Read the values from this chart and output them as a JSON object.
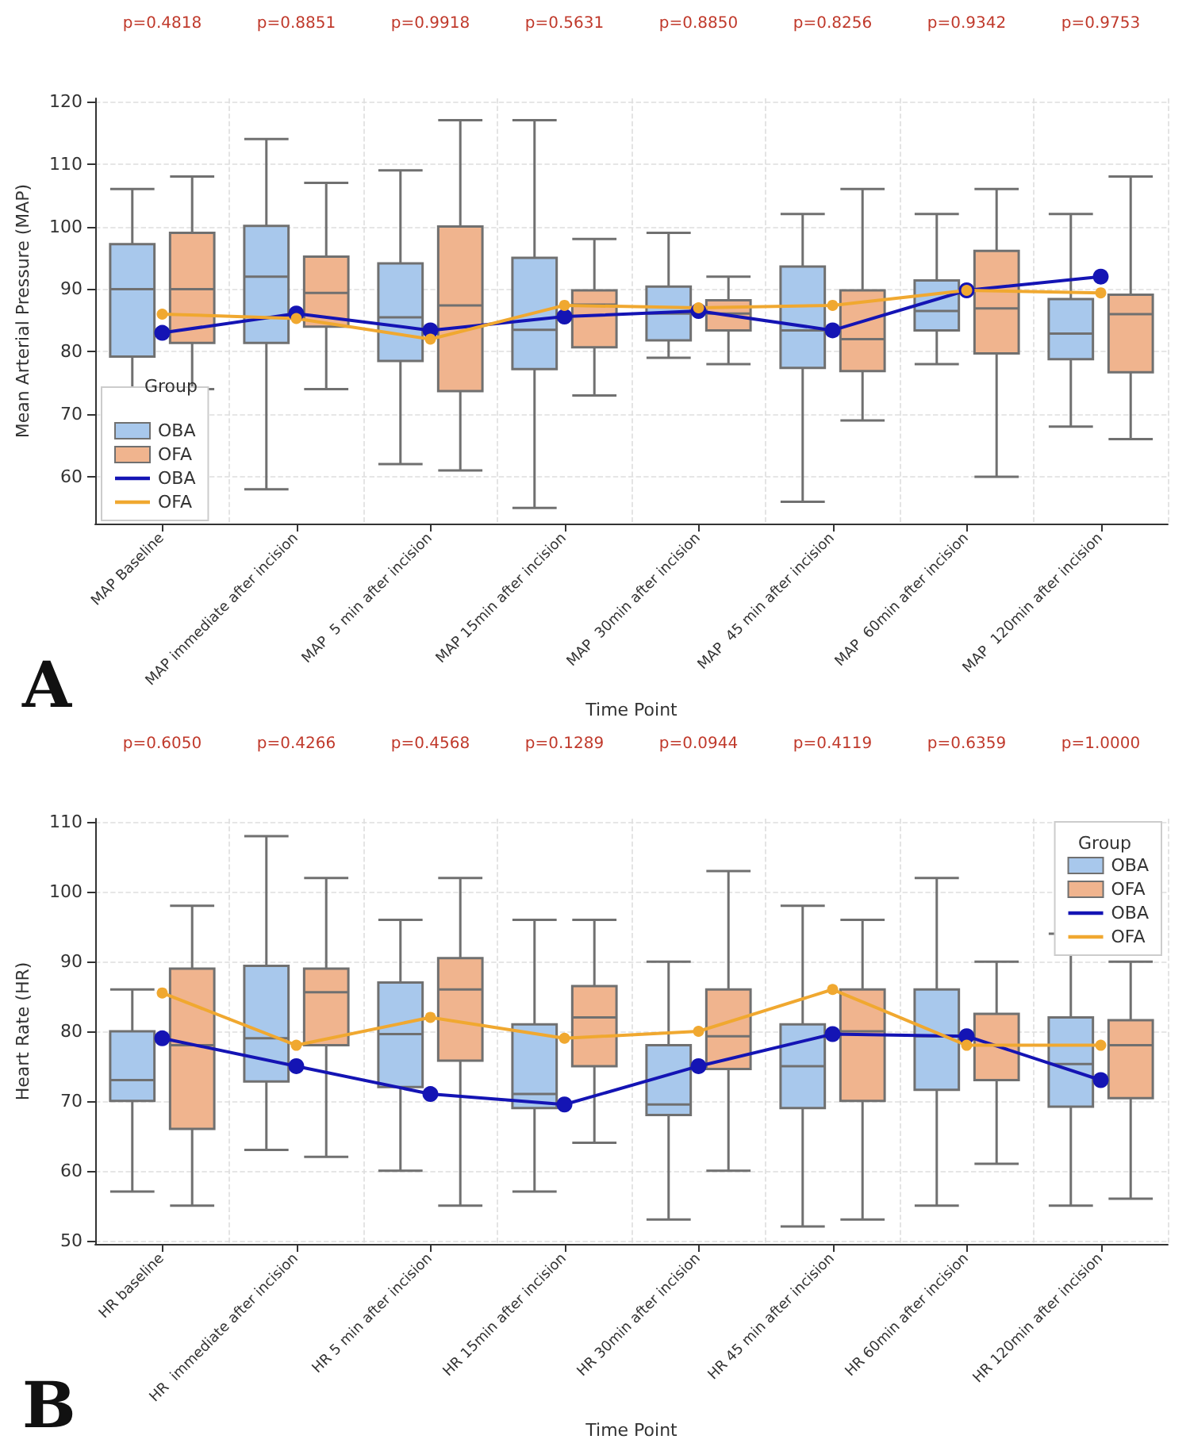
{
  "chart_data": [
    {
      "type": "box",
      "xlabel": "Time Point",
      "ylabel": "Mean Arterial Pressure (MAP)",
      "legend_title": "Group",
      "legend": "bottom left",
      "grid": true,
      "marker": "circle",
      "line_style": "solid",
      "ylim": [
        52.5,
        120.5
      ],
      "yticks": [
        60,
        70,
        80,
        90,
        100,
        110,
        120
      ],
      "categories": [
        "MAP Baseline",
        "MAP immediate after incision",
        "MAP  5 min after incision",
        "MAP 15min after incision",
        "MAP  30min after incision",
        "MAP  45 min after incision",
        "MAP  60min after incision",
        "MAP  120min after incision"
      ],
      "annotations": [
        "p=0.4818",
        "p=0.8851",
        "p=0.9918",
        "p=0.5631",
        "p=0.8850",
        "p=0.8256",
        "p=0.9342",
        "p=0.9753",
        "A"
      ],
      "series": [
        {
          "name": "OBA",
          "color": "#a8c8ec",
          "boxes": [
            {
              "low": 70,
              "q1": 79.2,
              "median": 90,
              "q3": 97.2,
              "high": 106
            },
            {
              "low": 58,
              "q1": 81.4,
              "median": 92,
              "q3": 100.1,
              "high": 114
            },
            {
              "low": 62,
              "q1": 78.5,
              "median": 85.5,
              "q3": 94.1,
              "high": 109
            },
            {
              "low": 55,
              "q1": 77.2,
              "median": 83.5,
              "q3": 95,
              "high": 117
            },
            {
              "low": 79,
              "q1": 81.8,
              "median": 86.1,
              "q3": 90.4,
              "high": 99
            },
            {
              "low": 56,
              "q1": 77.4,
              "median": 83.4,
              "q3": 93.6,
              "high": 102
            },
            {
              "low": 78,
              "q1": 83.4,
              "median": 86.5,
              "q3": 91.4,
              "high": 102
            },
            {
              "low": 68,
              "q1": 78.8,
              "median": 82.9,
              "q3": 88.4,
              "high": 102
            }
          ]
        },
        {
          "name": "OFA",
          "color": "#f0b48e",
          "boxes": [
            {
              "low": 74,
              "q1": 81.4,
              "median": 90,
              "q3": 99,
              "high": 108
            },
            {
              "low": 74,
              "q1": 84,
              "median": 89.4,
              "q3": 95.2,
              "high": 107
            },
            {
              "low": 61,
              "q1": 73.7,
              "median": 87.4,
              "q3": 100,
              "high": 117
            },
            {
              "low": 73,
              "q1": 80.7,
              "median": 87.5,
              "q3": 89.8,
              "high": 98
            },
            {
              "low": 78,
              "q1": 83.4,
              "median": 86.1,
              "q3": 88.2,
              "high": 92
            },
            {
              "low": 69,
              "q1": 76.9,
              "median": 82,
              "q3": 89.8,
              "high": 106
            },
            {
              "low": 60,
              "q1": 79.7,
              "median": 86.9,
              "q3": 96.1,
              "high": 106
            },
            {
              "low": 66,
              "q1": 76.7,
              "median": 86,
              "q3": 89.1,
              "high": 108
            }
          ]
        },
        {
          "name": "OBA",
          "type": "line",
          "color": "#1414b4",
          "values": [
            83,
            86.1,
            83.4,
            85.6,
            86.5,
            83.4,
            89.8,
            92
          ]
        },
        {
          "name": "OFA",
          "type": "line",
          "color": "#f0a830",
          "values": [
            86,
            85.3,
            82,
            87.4,
            87,
            87.4,
            89.8,
            89.4
          ]
        }
      ]
    },
    {
      "type": "box",
      "xlabel": "Time Point",
      "ylabel": "Heart Rate (HR)",
      "legend_title": "Group",
      "legend": "top right",
      "grid": true,
      "marker": "circle",
      "line_style": "solid",
      "ylim": [
        49.5,
        110.5
      ],
      "yticks": [
        50,
        60,
        70,
        80,
        90,
        100,
        110
      ],
      "categories": [
        "HR baseline",
        "HR  immediate after incision",
        "HR 5 min after incision",
        "HR 15min after incision",
        "HR 30min after incision",
        "HR 45 min after incision",
        "HR 60min after incision",
        "HR 120min after incision"
      ],
      "annotations": [
        "p=0.6050",
        "p=0.4266",
        "p=0.4568",
        "p=0.1289",
        "p=0.0944",
        "p=0.4119",
        "p=0.6359",
        "p=1.0000",
        "B"
      ],
      "series": [
        {
          "name": "OBA",
          "color": "#a8c8ec",
          "boxes": [
            {
              "low": 57,
              "q1": 70,
              "median": 73,
              "q3": 80,
              "high": 86
            },
            {
              "low": 63,
              "q1": 72.8,
              "median": 79,
              "q3": 89.4,
              "high": 108
            },
            {
              "low": 60,
              "q1": 72,
              "median": 79.6,
              "q3": 87,
              "high": 96
            },
            {
              "low": 57,
              "q1": 69,
              "median": 71,
              "q3": 81,
              "high": 96
            },
            {
              "low": 53,
              "q1": 68,
              "median": 69.5,
              "q3": 78,
              "high": 90
            },
            {
              "low": 52,
              "q1": 69,
              "median": 75,
              "q3": 81,
              "high": 98
            },
            {
              "low": 55,
              "q1": 71.6,
              "median": 79.3,
              "q3": 86,
              "high": 102
            },
            {
              "low": 55,
              "q1": 69.2,
              "median": 75.3,
              "q3": 82,
              "high": 94
            }
          ]
        },
        {
          "name": "OFA",
          "color": "#f0b48e",
          "boxes": [
            {
              "low": 55,
              "q1": 66,
              "median": 78,
              "q3": 89,
              "high": 98
            },
            {
              "low": 62,
              "q1": 78,
              "median": 85.6,
              "q3": 89,
              "high": 102
            },
            {
              "low": 55,
              "q1": 75.8,
              "median": 86,
              "q3": 90.5,
              "high": 102
            },
            {
              "low": 64,
              "q1": 75,
              "median": 82,
              "q3": 86.5,
              "high": 96
            },
            {
              "low": 60,
              "q1": 74.6,
              "median": 79.3,
              "q3": 86,
              "high": 103
            },
            {
              "low": 53,
              "q1": 70,
              "median": 80,
              "q3": 86,
              "high": 96
            },
            {
              "low": 61,
              "q1": 73,
              "median": 78,
              "q3": 82.5,
              "high": 90
            },
            {
              "low": 56,
              "q1": 70.4,
              "median": 78,
              "q3": 81.6,
              "high": 90
            }
          ]
        },
        {
          "name": "OBA",
          "type": "line",
          "color": "#1414b4",
          "values": [
            79,
            75,
            71,
            69.5,
            75,
            79.6,
            79.3,
            73
          ]
        },
        {
          "name": "OFA",
          "type": "line",
          "color": "#f0a830",
          "values": [
            85.5,
            78,
            82,
            79,
            80,
            86,
            78,
            78
          ]
        }
      ]
    }
  ]
}
